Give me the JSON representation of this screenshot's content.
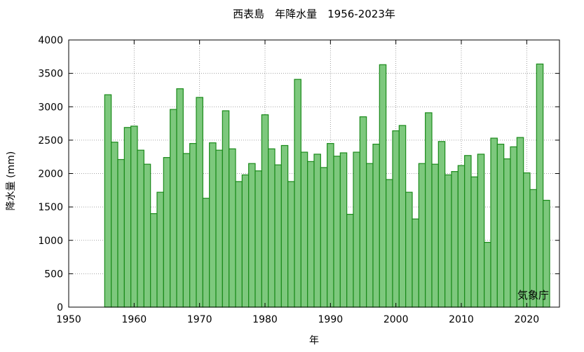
{
  "chart_data": {
    "type": "bar",
    "title": "西表島　年降水量　1956-2023年",
    "xlabel": "年",
    "ylabel": "降水量 (mm)",
    "annotation": "気象庁",
    "xlim": [
      1950,
      2025
    ],
    "ylim": [
      0,
      4000
    ],
    "xticks": [
      1950,
      1960,
      1970,
      1980,
      1990,
      2000,
      2010,
      2020
    ],
    "yticks": [
      0,
      500,
      1000,
      1500,
      2000,
      2500,
      3000,
      3500,
      4000
    ],
    "grid": true,
    "colors": {
      "bar_fill": "#7dc87d",
      "bar_stroke": "#1a8a1a",
      "grid": "#888888",
      "frame": "#000000"
    },
    "x": [
      1956,
      1957,
      1958,
      1959,
      1960,
      1961,
      1962,
      1963,
      1964,
      1965,
      1966,
      1967,
      1968,
      1969,
      1970,
      1971,
      1972,
      1973,
      1974,
      1975,
      1976,
      1977,
      1978,
      1979,
      1980,
      1981,
      1982,
      1983,
      1984,
      1985,
      1986,
      1987,
      1988,
      1989,
      1990,
      1991,
      1992,
      1993,
      1994,
      1995,
      1996,
      1997,
      1998,
      1999,
      2000,
      2001,
      2002,
      2003,
      2004,
      2005,
      2006,
      2007,
      2008,
      2009,
      2010,
      2011,
      2012,
      2013,
      2014,
      2015,
      2016,
      2017,
      2018,
      2019,
      2020,
      2021,
      2022,
      2023
    ],
    "values": [
      3180,
      2470,
      2210,
      2690,
      2710,
      2350,
      2140,
      1400,
      1720,
      2240,
      2960,
      3270,
      2300,
      2450,
      3140,
      1630,
      2460,
      2350,
      2940,
      2370,
      1880,
      1980,
      2150,
      2040,
      2880,
      2370,
      2130,
      2420,
      1880,
      3410,
      2320,
      2180,
      2290,
      2090,
      2450,
      2260,
      2310,
      1390,
      2320,
      2850,
      2150,
      2440,
      3630,
      1910,
      2640,
      2720,
      1720,
      1320,
      2150,
      2910,
      2140,
      2480,
      1980,
      2030,
      2120,
      2270,
      1950,
      2290,
      970,
      2530,
      2440,
      2220,
      2400,
      2540,
      2010,
      1760,
      3640,
      1600
    ]
  }
}
